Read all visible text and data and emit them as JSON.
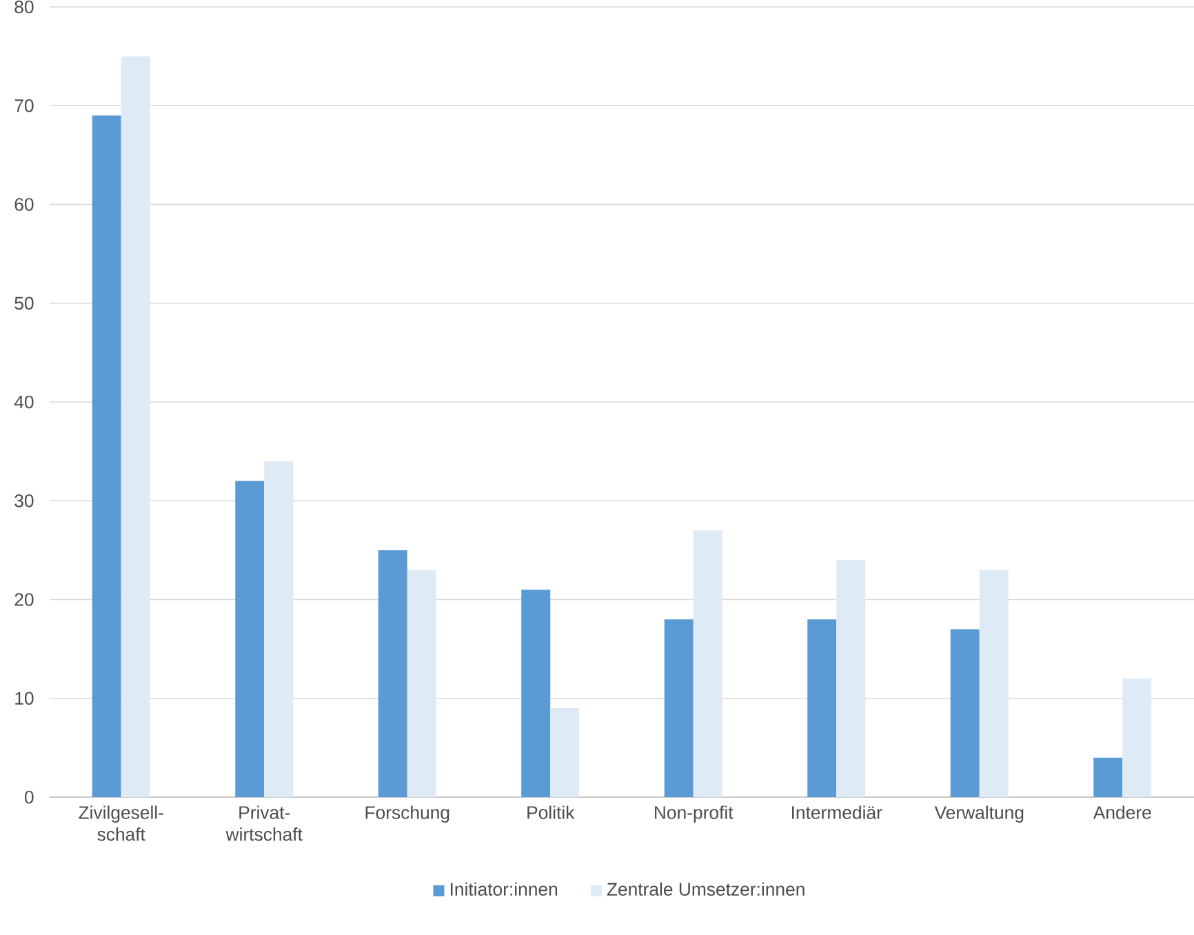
{
  "chart_data": {
    "type": "bar",
    "categories": [
      "Zivilgesell-schaft",
      "Privat-wirtschaft",
      "Forschung",
      "Politik",
      "Non-profit",
      "Intermediär",
      "Verwaltung",
      "Andere"
    ],
    "series": [
      {
        "name": "Initiator:innen",
        "color": "#5b9bd5",
        "values": [
          69,
          32,
          25,
          21,
          18,
          18,
          17,
          4
        ]
      },
      {
        "name": "Zentrale Umsetzer:innen",
        "color": "#deebf7",
        "values": [
          75,
          34,
          23,
          9,
          27,
          24,
          23,
          12
        ]
      }
    ],
    "ylim": [
      0,
      80
    ],
    "yticks": [
      0,
      10,
      20,
      30,
      40,
      50,
      60,
      70,
      80
    ],
    "grid": "y",
    "legend": "bottom"
  }
}
